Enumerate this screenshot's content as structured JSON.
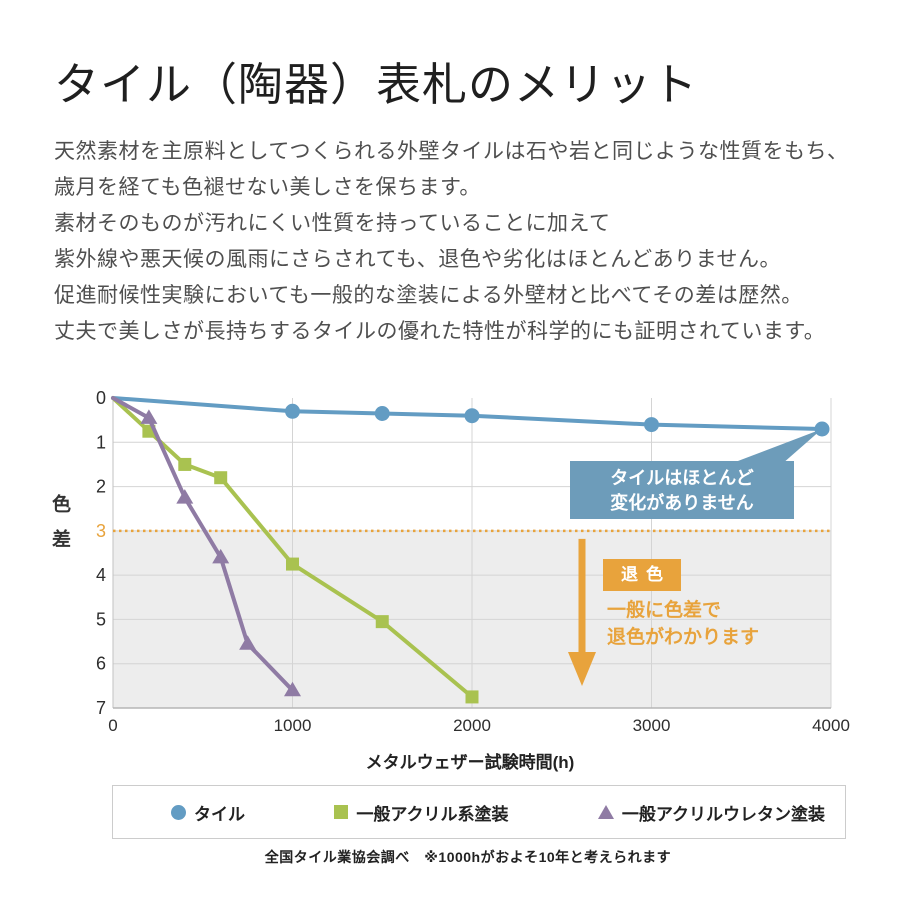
{
  "title": "タイル（陶器）表札のメリット",
  "intro": {
    "lines": [
      "天然素材を主原料としてつくられる外壁タイルは石や岩と同じような性質をもち、",
      "歳月を経ても色褪せない美しさを保ちます。",
      "素材そのものが汚れにくい性質を持っていることに加えて",
      "紫外線や悪天候の風雨にさらされても、退色や劣化はほとんどありません。",
      "促進耐候性実験においても一般的な塗装による外壁材と比べてその差は歴然。",
      "丈夫で美しさが長持ちするタイルの優れた特性が科学的にも証明されています。"
    ]
  },
  "chart_data": {
    "type": "line",
    "xlabel": "メタルウェザー試験時間(h)",
    "ylabel": "色差",
    "xlim": [
      0,
      4000
    ],
    "ylim": [
      0,
      7
    ],
    "y_axis_inverted": true,
    "x_ticks": [
      0,
      1000,
      2000,
      3000,
      4000
    ],
    "y_ticks": [
      0,
      1,
      2,
      3,
      4,
      5,
      6,
      7
    ],
    "grid": true,
    "legend_position": "bottom",
    "threshold": {
      "value": 3,
      "color": "#e8a33c",
      "style": "dotted"
    },
    "shaded_region": {
      "from": 3,
      "to": 7,
      "color": "#ededed"
    },
    "series": [
      {
        "name": "タイル",
        "color": "#639cc3",
        "marker": "circle",
        "points": [
          [
            0,
            0
          ],
          [
            1000,
            0.3
          ],
          [
            1500,
            0.35
          ],
          [
            2000,
            0.4
          ],
          [
            3000,
            0.6
          ],
          [
            3950,
            0.7
          ]
        ]
      },
      {
        "name": "一般アクリル系塗装",
        "color": "#a9c250",
        "marker": "square",
        "points": [
          [
            0,
            0
          ],
          [
            200,
            0.75
          ],
          [
            400,
            1.5
          ],
          [
            600,
            1.8
          ],
          [
            1000,
            3.75
          ],
          [
            1500,
            5.05
          ],
          [
            2000,
            6.75
          ]
        ]
      },
      {
        "name": "一般アクリルウレタン塗装",
        "color": "#8f7ba4",
        "marker": "triangle",
        "points": [
          [
            0,
            0
          ],
          [
            200,
            0.45
          ],
          [
            400,
            2.25
          ],
          [
            600,
            3.6
          ],
          [
            750,
            5.55
          ],
          [
            1000,
            6.6
          ]
        ]
      }
    ]
  },
  "annotations": {
    "callout": {
      "lines": [
        "タイルはほとんど",
        "変化がありません"
      ],
      "bg_color": "#6d9cba"
    },
    "fade_label": "退色",
    "fade_note_lines": [
      "一般に色差で",
      "退色がわかります"
    ],
    "accent_color": "#e8a33c"
  },
  "footnote": "全国タイル業協会調べ　※1000hがおよそ10年と考えられます"
}
